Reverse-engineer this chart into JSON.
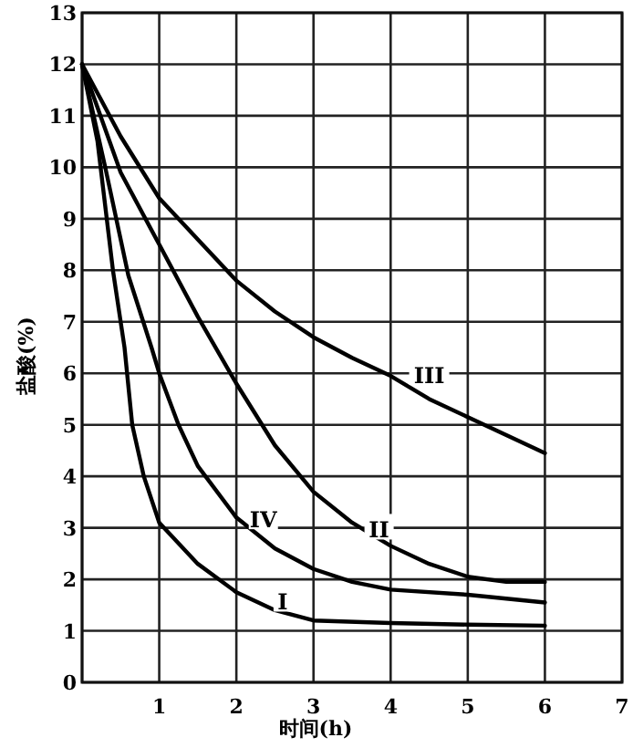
{
  "chart_data": {
    "type": "line",
    "xlabel": "时间(h)",
    "ylabel": "盐酸(%)",
    "xlim": [
      0,
      7
    ],
    "ylim": [
      0,
      13
    ],
    "xticks": [
      {
        "value": 0,
        "label": null
      },
      1,
      2,
      3,
      4,
      5,
      6,
      7
    ],
    "yticks": [
      0,
      1,
      2,
      3,
      4,
      5,
      6,
      7,
      8,
      9,
      10,
      11,
      12,
      13
    ],
    "grid": true,
    "marker": "none",
    "line_style": "solid",
    "series": [
      {
        "name": "I",
        "color": "#000000",
        "x": [
          0,
          0.2,
          0.4,
          0.55,
          0.65,
          0.8,
          1,
          1.5,
          2,
          2.5,
          3,
          4,
          5,
          6
        ],
        "values": [
          12,
          10.5,
          8,
          6.5,
          5,
          4,
          3.1,
          2.3,
          1.75,
          1.4,
          1.2,
          1.15,
          1.12,
          1.1
        ]
      },
      {
        "name": "II",
        "color": "#000000",
        "x": [
          0,
          0.5,
          1,
          1.5,
          2,
          2.5,
          3,
          3.5,
          4,
          4.5,
          5,
          5.5,
          6
        ],
        "values": [
          12,
          9.9,
          8.5,
          7.1,
          5.8,
          4.6,
          3.7,
          3.1,
          2.65,
          2.3,
          2.05,
          1.95,
          1.95
        ]
      },
      {
        "name": "III",
        "color": "#000000",
        "x": [
          0,
          0.5,
          1,
          1.5,
          2,
          2.5,
          3,
          3.5,
          4,
          4.5,
          5,
          5.5,
          6
        ],
        "values": [
          12,
          10.6,
          9.4,
          8.6,
          7.8,
          7.2,
          6.7,
          6.3,
          5.95,
          5.5,
          5.15,
          4.8,
          4.45
        ]
      },
      {
        "name": "IV",
        "color": "#000000",
        "x": [
          0,
          0.3,
          0.6,
          0.9,
          1,
          1.25,
          1.5,
          2,
          2.5,
          3,
          3.5,
          4,
          5,
          6
        ],
        "values": [
          12,
          10,
          7.9,
          6.5,
          6,
          5,
          4.2,
          3.2,
          2.6,
          2.2,
          1.95,
          1.8,
          1.7,
          1.55
        ]
      }
    ]
  }
}
